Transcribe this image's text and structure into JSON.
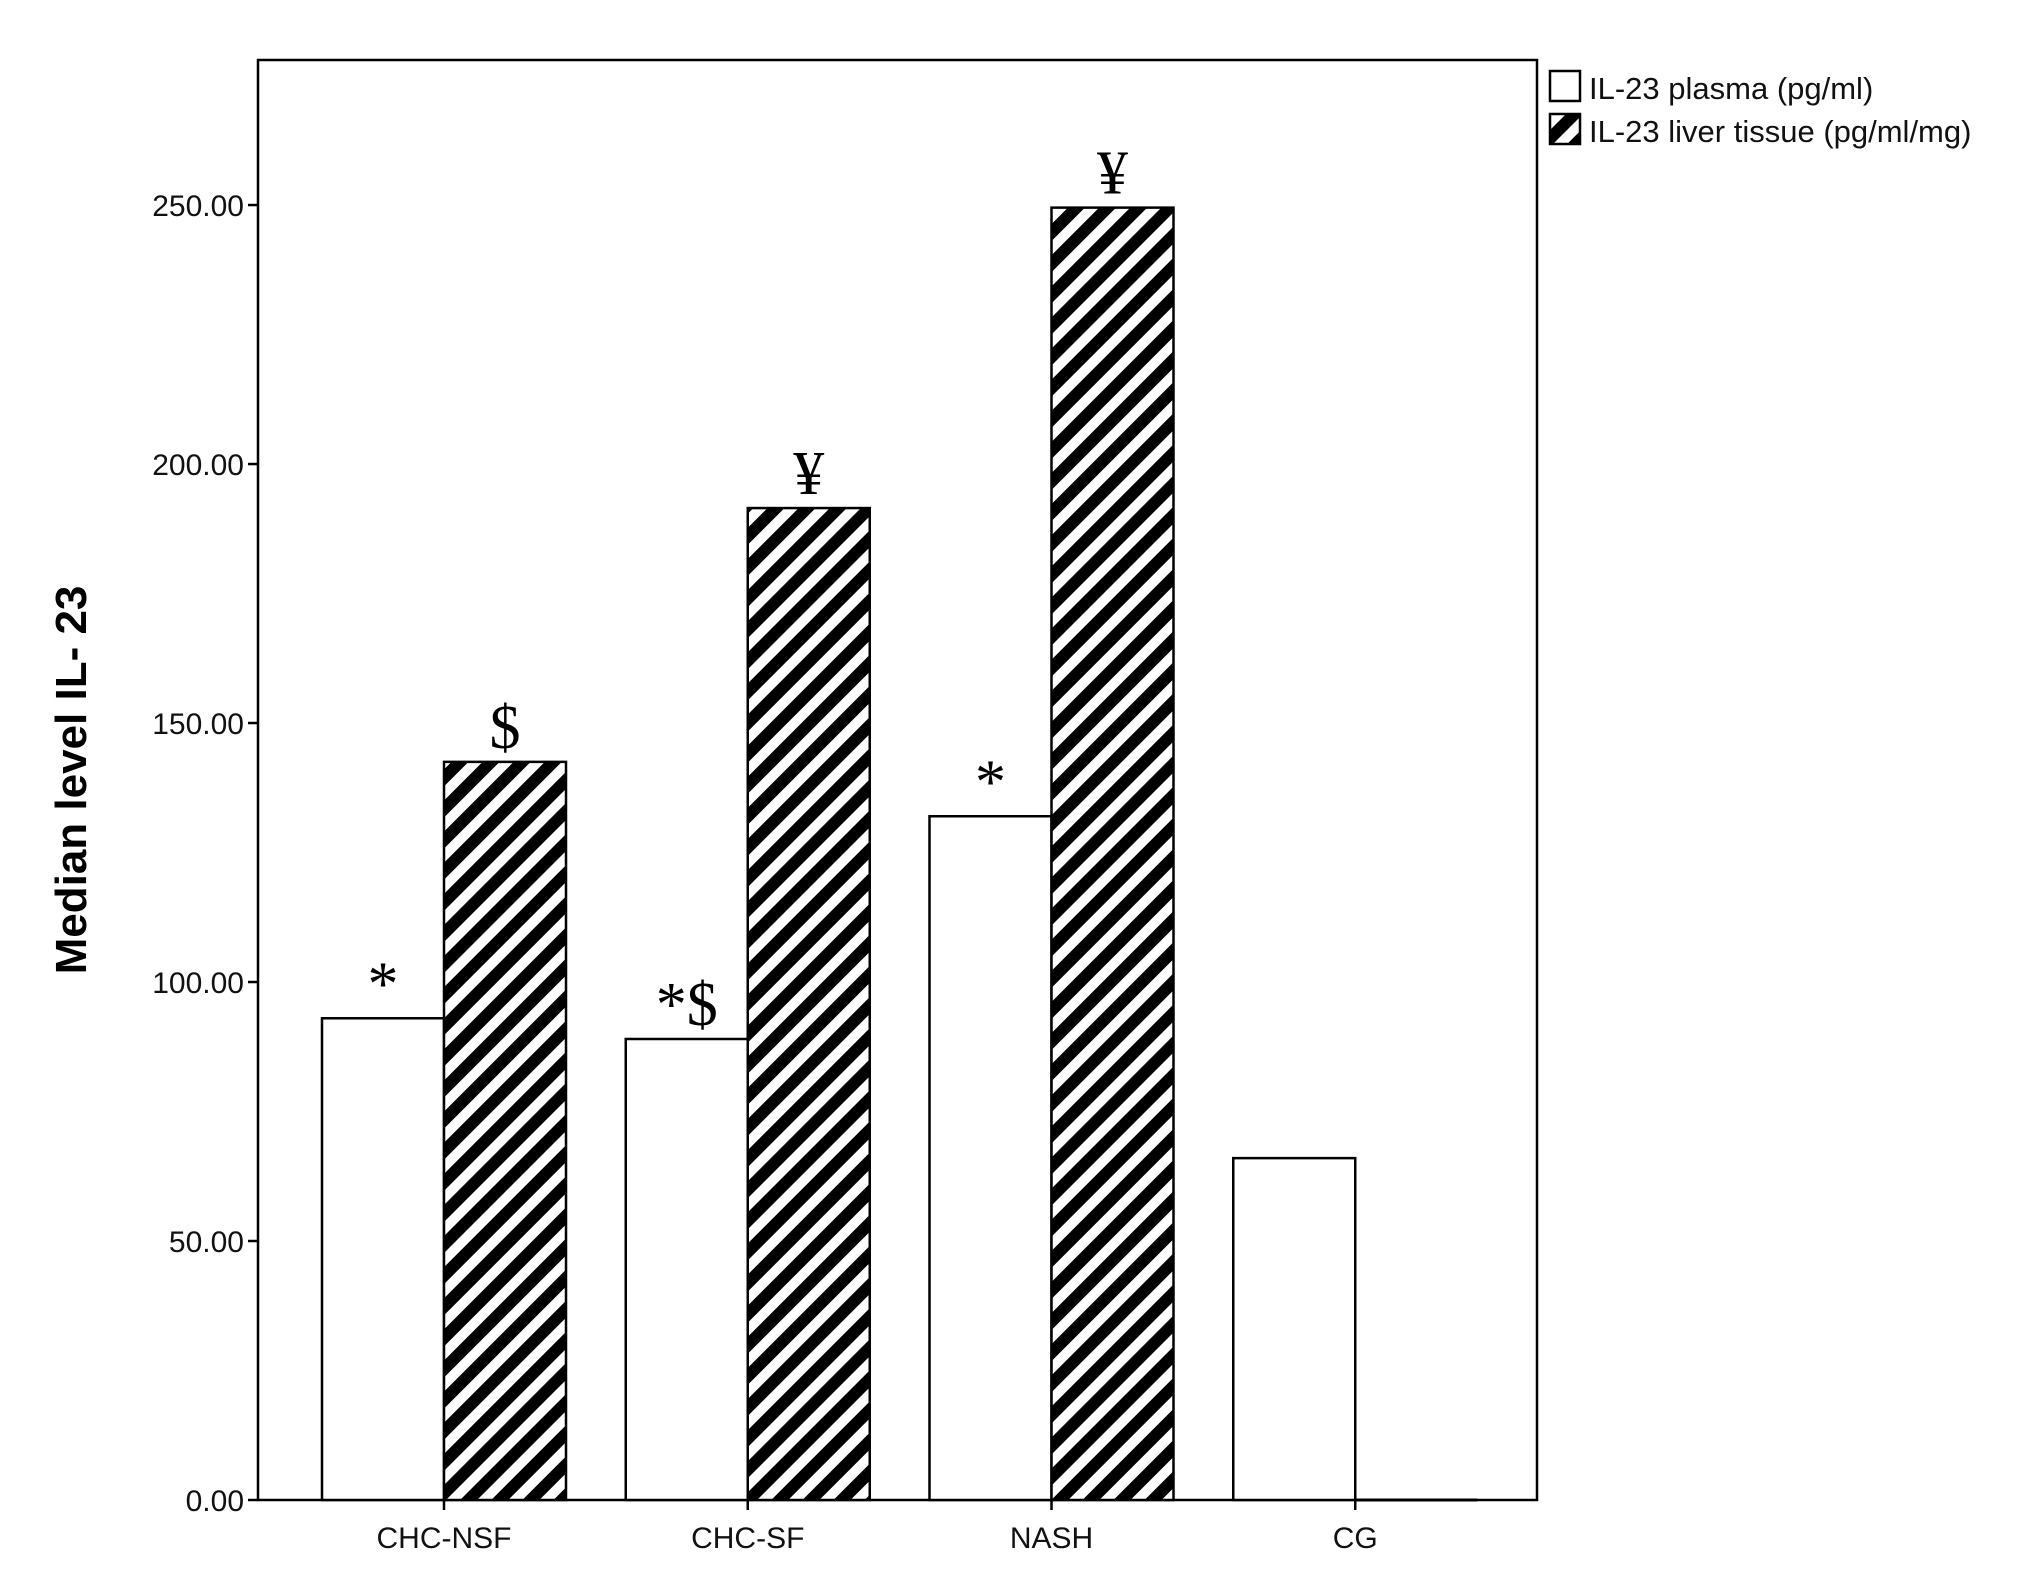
{
  "chart_data": {
    "type": "bar",
    "title": "",
    "xlabel": "",
    "ylabel": "Median level IL- 23",
    "ylim": [
      0,
      278
    ],
    "yticks": [
      "0.00",
      "50.00",
      "100.00",
      "150.00",
      "200.00",
      "250.00"
    ],
    "ytick_values": [
      0,
      50,
      100,
      150,
      200,
      250
    ],
    "grid": false,
    "legend_position": "outside top-right",
    "categories": [
      "CHC-NSF",
      "CHC-SF",
      "NASH",
      "CG"
    ],
    "series": [
      {
        "name": "IL-23 plasma (pg/ml)",
        "fill": "white",
        "values": [
          93,
          89,
          132,
          66
        ],
        "annotations": [
          "*",
          "*$",
          "*",
          ""
        ]
      },
      {
        "name": "IL-23 liver tissue (pg/ml/mg)",
        "fill": "diagonal-hatch",
        "values": [
          142.5,
          191.5,
          249.5,
          0
        ],
        "annotations": [
          "$",
          "¥",
          "¥",
          ""
        ]
      }
    ],
    "colors": {
      "stroke": "#000000",
      "plasma_fill": "#ffffff",
      "hatch_fill": "#000000",
      "background": "#ffffff"
    }
  }
}
